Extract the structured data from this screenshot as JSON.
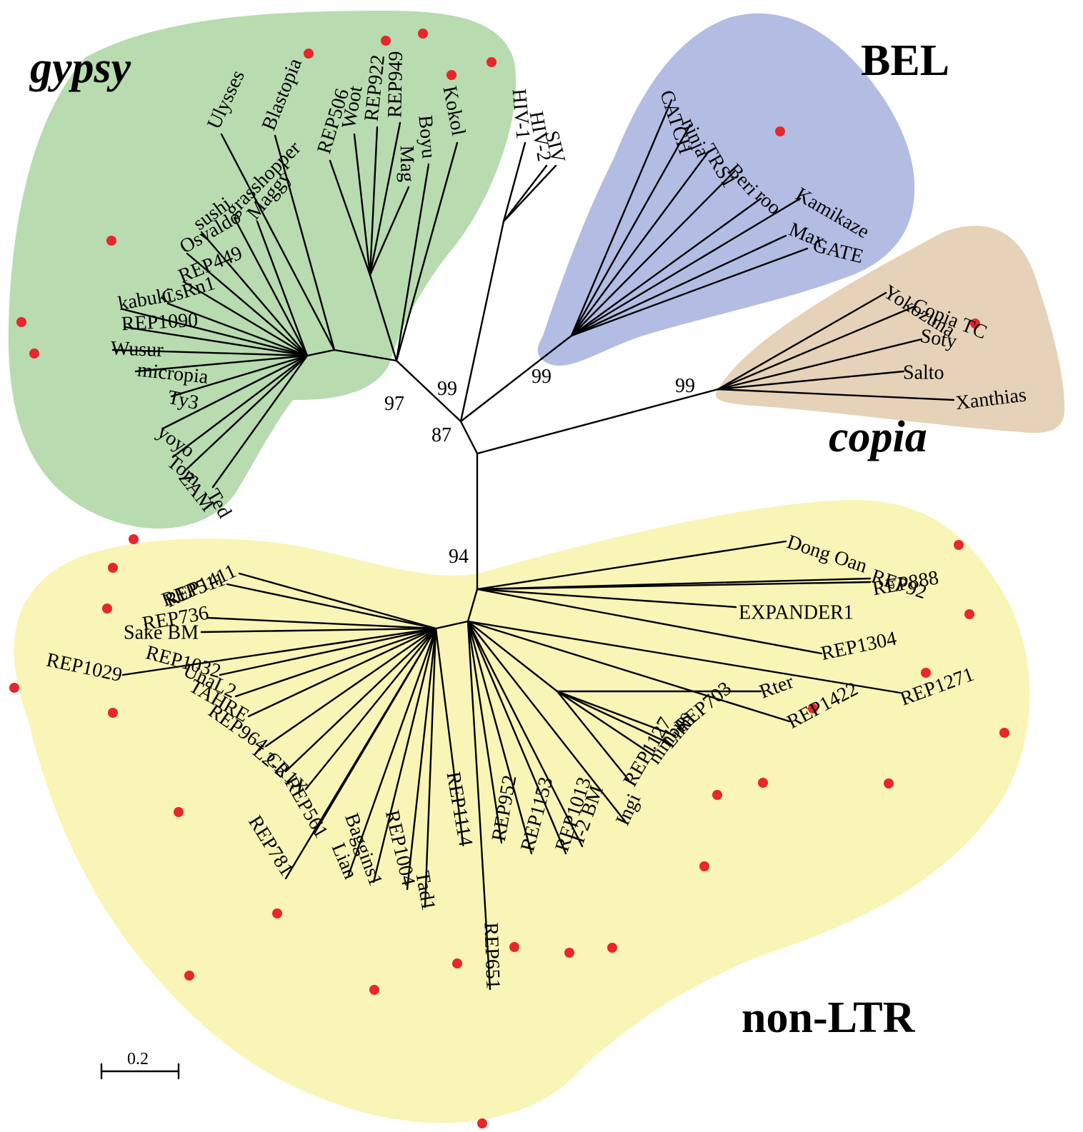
{
  "colors": {
    "gypsy": "#b8dbb0",
    "bel": "#b3bde3",
    "copia": "#e5d2b8",
    "nonltr": "#f8f5b6",
    "marker": "#e8262b",
    "branch": "#000000"
  },
  "clades": {
    "gypsy": "gypsy",
    "bel": "BEL",
    "copia": "copia",
    "nonltr": "non-LTR"
  },
  "support": [
    "97",
    "99",
    "87",
    "99",
    "99",
    "94"
  ],
  "scale_bar": {
    "label": "0.2"
  },
  "leaves": [
    {
      "label": "Ulysses",
      "marked": false
    },
    {
      "label": "Blastopia",
      "marked": false
    },
    {
      "label": "REP506",
      "marked": true
    },
    {
      "label": "Woot",
      "marked": false
    },
    {
      "label": "REP922",
      "marked": true
    },
    {
      "label": "REP949",
      "marked": true
    },
    {
      "label": "Mag",
      "marked": false
    },
    {
      "label": "Boyu",
      "marked": true
    },
    {
      "label": "Kokol",
      "marked": true
    },
    {
      "label": "grasshopper",
      "marked": false
    },
    {
      "label": "Maggy",
      "marked": false
    },
    {
      "label": "sushi",
      "marked": false
    },
    {
      "label": "Osvaldo",
      "marked": false
    },
    {
      "label": "REP449",
      "marked": true
    },
    {
      "label": "CsRn1",
      "marked": false
    },
    {
      "label": "kabuki",
      "marked": false
    },
    {
      "label": "REP1090",
      "marked": true
    },
    {
      "label": "Wusur",
      "marked": true
    },
    {
      "label": "micropia",
      "marked": false
    },
    {
      "label": "Ty3",
      "marked": false
    },
    {
      "label": "yoyo",
      "marked": false
    },
    {
      "label": "Tom",
      "marked": false
    },
    {
      "label": "ZAM",
      "marked": false
    },
    {
      "label": "Ted",
      "marked": false
    },
    {
      "label": "HIV-1",
      "marked": false
    },
    {
      "label": "HIV-2",
      "marked": false
    },
    {
      "label": "SIV",
      "marked": false
    },
    {
      "label": "CATCH",
      "marked": false
    },
    {
      "label": "ninja",
      "marked": false
    },
    {
      "label": "TRS1",
      "marked": false
    },
    {
      "label": "Beri",
      "marked": true
    },
    {
      "label": "roo",
      "marked": false
    },
    {
      "label": "Kamikaze",
      "marked": false
    },
    {
      "label": "Max",
      "marked": false
    },
    {
      "label": "GATE",
      "marked": false
    },
    {
      "label": "Yokozuna",
      "marked": false
    },
    {
      "label": "Copia TC",
      "marked": false
    },
    {
      "label": "Soty",
      "marked": true
    },
    {
      "label": "Salto",
      "marked": false
    },
    {
      "label": "Xanthias",
      "marked": false
    },
    {
      "label": "Dong Oan",
      "marked": false
    },
    {
      "label": "REP92",
      "marked": true
    },
    {
      "label": "REP888",
      "marked": true
    },
    {
      "label": "EXPANDER1",
      "marked": false
    },
    {
      "label": "REP1304",
      "marked": true
    },
    {
      "label": "Rter",
      "marked": true
    },
    {
      "label": "REP1271",
      "marked": true
    },
    {
      "label": "REP1422",
      "marked": true
    },
    {
      "label": "REP703",
      "marked": true
    },
    {
      "label": "Limi",
      "marked": true
    },
    {
      "label": "nimbus",
      "marked": false
    },
    {
      "label": "REP1127",
      "marked": true
    },
    {
      "label": "Ingi",
      "marked": false
    },
    {
      "label": "I-2 BM",
      "marked": false
    },
    {
      "label": "REP1013",
      "marked": true
    },
    {
      "label": "REP1153",
      "marked": true
    },
    {
      "label": "REP952",
      "marked": true
    },
    {
      "label": "REP651",
      "marked": true
    },
    {
      "label": "REP1114",
      "marked": true
    },
    {
      "label": "Tad1",
      "marked": false
    },
    {
      "label": "REP1004",
      "marked": true
    },
    {
      "label": "Baggins1",
      "marked": false
    },
    {
      "label": "Lian",
      "marked": false
    },
    {
      "label": "REP561",
      "marked": true
    },
    {
      "label": "REP781",
      "marked": true
    },
    {
      "label": "CR1X",
      "marked": false
    },
    {
      "label": "L2-2",
      "marked": false
    },
    {
      "label": "REP964",
      "marked": true
    },
    {
      "label": "TAHRE",
      "marked": false
    },
    {
      "label": "UnaL2",
      "marked": false
    },
    {
      "label": "REP1032",
      "marked": true
    },
    {
      "label": "REP1029",
      "marked": true
    },
    {
      "label": "Sake BM",
      "marked": false
    },
    {
      "label": "REP736",
      "marked": true
    },
    {
      "label": "REP511",
      "marked": true
    },
    {
      "label": "REP1411",
      "marked": true
    }
  ]
}
